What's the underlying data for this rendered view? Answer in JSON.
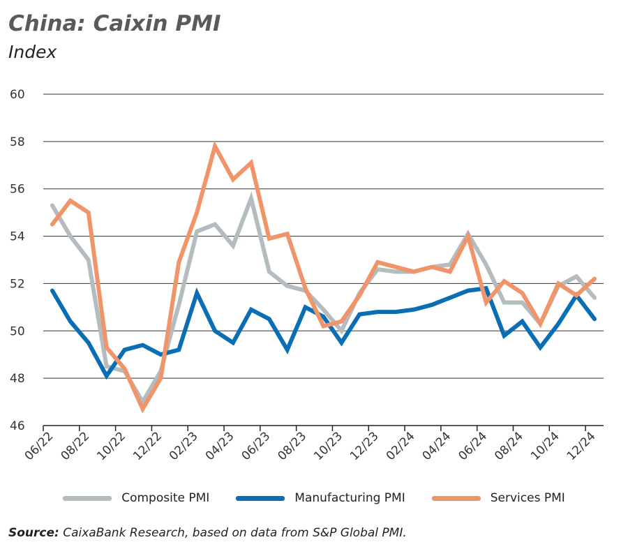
{
  "chart_data": {
    "type": "line",
    "title": "China: Caixin PMI",
    "subtitle": "Index",
    "x": [
      "06/22",
      "07/22",
      "08/22",
      "09/22",
      "10/22",
      "11/22",
      "12/22",
      "01/23",
      "02/23",
      "03/23",
      "04/23",
      "05/23",
      "06/23",
      "07/23",
      "08/23",
      "09/23",
      "10/23",
      "11/23",
      "12/23",
      "01/24",
      "02/24",
      "03/24",
      "04/24",
      "05/24",
      "06/24",
      "07/24",
      "08/24",
      "09/24",
      "10/24",
      "11/24",
      "12/24"
    ],
    "x_tick_labels": [
      "06/22",
      "08/22",
      "10/22",
      "12/22",
      "02/23",
      "04/23",
      "06/23",
      "08/23",
      "10/23",
      "12/23",
      "02/24",
      "04/24",
      "06/24",
      "08/24",
      "10/24",
      "12/24"
    ],
    "ylim": [
      46,
      60
    ],
    "y_ticks": [
      46,
      48,
      50,
      52,
      54,
      56,
      58,
      60
    ],
    "grid": "horizontal",
    "legend_placement": "bottom",
    "series": [
      {
        "name": "Composite PMI",
        "color": "#b4bcc0",
        "values": [
          55.3,
          54.0,
          53.0,
          48.5,
          48.3,
          47.0,
          48.3,
          51.1,
          54.2,
          54.5,
          53.6,
          55.6,
          52.5,
          51.9,
          51.7,
          50.9,
          50.0,
          51.6,
          52.6,
          52.5,
          52.5,
          52.7,
          52.8,
          54.1,
          52.8,
          51.2,
          51.2,
          50.3,
          51.9,
          52.3,
          51.4
        ]
      },
      {
        "name": "Manufacturing PMI",
        "color": "#0a6eb4",
        "values": [
          51.7,
          50.4,
          49.5,
          48.1,
          49.2,
          49.4,
          49.0,
          49.2,
          51.6,
          50.0,
          49.5,
          50.9,
          50.5,
          49.2,
          51.0,
          50.6,
          49.5,
          50.7,
          50.8,
          50.8,
          50.9,
          51.1,
          51.4,
          51.7,
          51.8,
          49.8,
          50.4,
          49.3,
          50.3,
          51.5,
          50.5
        ]
      },
      {
        "name": "Services PMI",
        "color": "#f0956a",
        "values": [
          54.5,
          55.5,
          55.0,
          49.3,
          48.4,
          46.7,
          48.0,
          52.9,
          55.0,
          57.8,
          56.4,
          57.1,
          53.9,
          54.1,
          51.8,
          50.2,
          50.4,
          51.5,
          52.9,
          52.7,
          52.5,
          52.7,
          52.5,
          54.0,
          51.2,
          52.1,
          51.6,
          50.3,
          52.0,
          51.5,
          52.2
        ]
      }
    ]
  },
  "source": {
    "label": "Source:",
    "text": " CaixaBank Research, based on data from S&P Global PMI."
  }
}
